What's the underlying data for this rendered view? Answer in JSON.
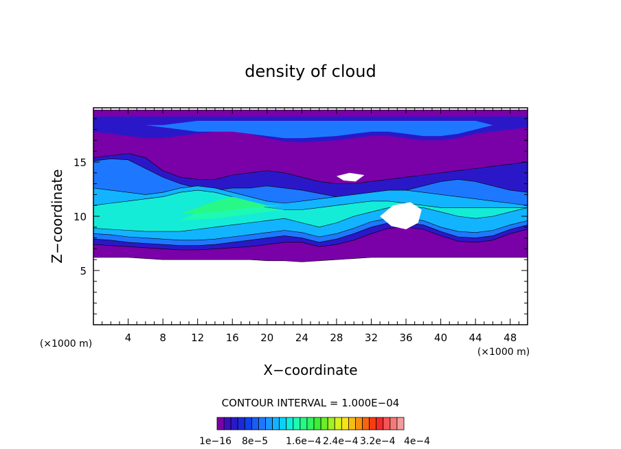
{
  "chart_data": {
    "type": "heatmap",
    "title": "density of cloud",
    "xlabel": "X−coordinate",
    "ylabel": "Z−coordinate",
    "x_unit_left": "(×1000 m)",
    "x_unit_right": "(×1000 m)",
    "xlim": [
      0,
      50
    ],
    "ylim": [
      0,
      20
    ],
    "x_ticks": [
      4,
      8,
      12,
      16,
      20,
      24,
      28,
      32,
      36,
      40,
      44,
      48
    ],
    "y_ticks": [
      5,
      10,
      15
    ],
    "contour_interval_text": "CONTOUR INTERVAL = 1.000E−04",
    "colorbar": {
      "colors": [
        "#7a00a8",
        "#3c10b8",
        "#2a18c8",
        "#1a2ad8",
        "#1040e8",
        "#1a5cf4",
        "#1e78ff",
        "#1c96ff",
        "#12b4ff",
        "#0ad2f6",
        "#14ecd8",
        "#1efab0",
        "#28f886",
        "#30f460",
        "#3cee36",
        "#6cee28",
        "#a4f024",
        "#d6f21e",
        "#f6e418",
        "#f6bc14",
        "#f69010",
        "#f6640e",
        "#f63c10",
        "#f42a2a",
        "#f45454",
        "#f47a7a",
        "#f49c9c"
      ],
      "labels": [
        "1e−16",
        "8e−5",
        "1.6e−4",
        "2.4e−4",
        "3.2e−4",
        "4e−4"
      ]
    },
    "bands": [
      {
        "level": 1,
        "color": "#7a00a8",
        "z_bottom": [
          6.2,
          6.2,
          6.2,
          6.1,
          6.0,
          6.0,
          6.0,
          6.0,
          6.0,
          6.0,
          5.9,
          5.9,
          5.8,
          5.9,
          6.0,
          6.1,
          6.2,
          6.2,
          6.2,
          6.2,
          6.2,
          6.2,
          6.2,
          6.2,
          6.2,
          6.2
        ],
        "z_top": [
          19.8,
          19.8,
          19.8,
          19.8,
          19.8,
          19.8,
          19.8,
          19.8,
          19.8,
          19.8,
          19.8,
          19.8,
          19.8,
          19.8,
          19.8,
          19.8,
          19.8,
          19.8,
          19.8,
          19.8,
          19.8,
          19.8,
          19.8,
          19.8,
          19.8,
          19.8
        ]
      },
      {
        "level": 2,
        "color": "#2a18c8",
        "z_bottom": [
          7.4,
          7.3,
          7.2,
          7.1,
          7.0,
          6.9,
          6.9,
          7.0,
          7.1,
          7.2,
          7.4,
          7.6,
          7.6,
          7.2,
          7.4,
          7.8,
          8.4,
          8.9,
          9.0,
          8.8,
          8.2,
          7.7,
          7.6,
          7.8,
          8.4,
          8.8
        ],
        "z_top": [
          15.4,
          15.6,
          15.8,
          15.4,
          14.2,
          13.6,
          13.4,
          13.4,
          13.8,
          14.0,
          14.2,
          14.0,
          13.6,
          13.2,
          13.0,
          13.0,
          13.2,
          13.4,
          13.6,
          13.8,
          14.0,
          14.2,
          14.4,
          14.6,
          14.8,
          15.0
        ]
      },
      {
        "level": 3,
        "color": "#1e78ff",
        "z_bottom": [
          7.9,
          7.8,
          7.6,
          7.5,
          7.4,
          7.3,
          7.3,
          7.4,
          7.6,
          7.8,
          8.0,
          8.2,
          8.0,
          7.6,
          7.9,
          8.4,
          9.0,
          9.4,
          9.4,
          9.2,
          8.6,
          8.1,
          8.0,
          8.2,
          8.8,
          9.2
        ],
        "z_top": [
          15.1,
          15.3,
          15.2,
          14.4,
          13.6,
          13.0,
          12.6,
          12.4,
          12.6,
          12.6,
          12.8,
          12.6,
          12.4,
          12.1,
          11.8,
          11.6,
          11.8,
          12.0,
          12.4,
          12.8,
          13.2,
          13.4,
          13.2,
          12.8,
          12.4,
          12.2
        ]
      },
      {
        "level": 4,
        "color": "#12b4ff",
        "z_bottom": [
          8.4,
          8.3,
          8.1,
          8.0,
          7.9,
          7.8,
          7.8,
          7.9,
          8.1,
          8.3,
          8.5,
          8.7,
          8.5,
          8.1,
          8.4,
          8.9,
          9.5,
          9.8,
          9.8,
          9.6,
          9.0,
          8.6,
          8.5,
          8.7,
          9.2,
          9.6
        ],
        "z_top": [
          12.6,
          12.4,
          12.2,
          12.0,
          12.2,
          12.6,
          12.8,
          12.6,
          12.2,
          11.8,
          11.4,
          11.2,
          11.4,
          11.6,
          11.8,
          12.0,
          12.2,
          12.4,
          12.4,
          12.2,
          12.0,
          11.8,
          11.6,
          11.4,
          11.2,
          11.0
        ]
      },
      {
        "level": 5,
        "color": "#14ecd8",
        "z_bottom": [
          8.9,
          8.8,
          8.7,
          8.6,
          8.6,
          8.6,
          8.8,
          9.0,
          9.2,
          9.4,
          9.6,
          9.8,
          9.4,
          9.0,
          9.4,
          10.0,
          10.4,
          10.8,
          10.9,
          10.8,
          10.4,
          10.0,
          9.8,
          10.0,
          10.4,
          10.8
        ],
        "z_top": [
          11.0,
          11.2,
          11.4,
          11.6,
          11.8,
          12.2,
          12.4,
          12.2,
          11.8,
          11.2,
          10.8,
          10.6,
          10.6,
          10.8,
          11.0,
          11.2,
          11.4,
          11.4,
          11.2,
          11.0,
          10.8,
          10.8,
          10.8,
          10.8,
          10.8,
          10.8
        ]
      },
      {
        "level": 6,
        "color": "#1efab0",
        "z_bottom": [
          9.6,
          9.6,
          9.6,
          9.6,
          9.6,
          9.6,
          9.7,
          9.8,
          10.0,
          10.2,
          10.4,
          10.6,
          10.6,
          10.6,
          10.6,
          10.6,
          10.6,
          10.6,
          10.6,
          10.6,
          10.6,
          10.6,
          10.6,
          10.6,
          10.6,
          10.6
        ],
        "z_top": [
          9.6,
          9.6,
          9.6,
          9.6,
          9.6,
          9.6,
          10.4,
          11.2,
          11.6,
          11.2,
          10.8,
          10.6,
          10.6,
          10.6,
          10.6,
          10.6,
          10.6,
          10.6,
          10.6,
          10.6,
          10.6,
          10.6,
          10.6,
          10.6,
          10.6,
          10.6
        ]
      },
      {
        "level": 7,
        "color": "#28f886",
        "z_bottom": [
          10.2,
          10.2,
          10.2,
          10.2,
          10.2,
          10.2,
          10.3,
          10.4,
          10.6,
          10.8,
          10.9,
          11.0,
          11.0,
          11.0,
          11.0,
          11.0,
          11.0,
          11.0,
          11.0,
          11.0,
          11.0,
          11.0,
          11.0,
          11.0,
          11.0,
          11.0
        ],
        "z_top": [
          10.2,
          10.2,
          10.2,
          10.2,
          10.2,
          10.2,
          10.8,
          11.4,
          11.8,
          11.4,
          11.0,
          11.0,
          11.0,
          11.0,
          11.0,
          11.0,
          11.0,
          11.0,
          11.0,
          11.0,
          11.0,
          11.0,
          11.0,
          11.0,
          11.0,
          11.0
        ]
      },
      {
        "level": 2,
        "color": "#2a18c8",
        "z_bottom": [
          17.8,
          17.6,
          17.4,
          17.2,
          17.2,
          17.4,
          17.6,
          17.8,
          17.8,
          17.6,
          17.2,
          16.9,
          16.8,
          16.9,
          17.0,
          17.2,
          17.4,
          17.4,
          17.2,
          17.0,
          17.0,
          17.2,
          17.6,
          17.8,
          18.0,
          18.2
        ],
        "z_top": [
          19.2,
          19.2,
          19.2,
          19.2,
          19.2,
          19.2,
          19.2,
          19.2,
          19.2,
          19.2,
          19.2,
          19.2,
          19.2,
          19.2,
          19.2,
          19.2,
          19.2,
          19.2,
          19.2,
          19.2,
          19.2,
          19.2,
          19.2,
          19.2,
          19.2,
          19.2
        ]
      },
      {
        "level": 3,
        "color": "#1e78ff",
        "z_bottom": [
          18.4,
          18.4,
          18.4,
          18.4,
          18.2,
          18.0,
          17.8,
          17.8,
          17.8,
          17.6,
          17.4,
          17.2,
          17.2,
          17.3,
          17.4,
          17.6,
          17.8,
          17.8,
          17.6,
          17.4,
          17.4,
          17.6,
          18.0,
          18.4,
          18.4,
          18.4
        ],
        "z_top": [
          18.4,
          18.4,
          18.4,
          18.4,
          18.4,
          18.6,
          18.8,
          18.8,
          18.8,
          18.8,
          18.8,
          18.8,
          18.8,
          18.8,
          18.8,
          18.8,
          18.8,
          18.8,
          18.8,
          18.8,
          18.8,
          18.8,
          18.8,
          18.4,
          18.4,
          18.4
        ]
      }
    ],
    "holes": [
      [
        [
          28.0,
          13.7
        ],
        [
          29.5,
          14.0
        ],
        [
          31.2,
          13.8
        ],
        [
          30.2,
          13.2
        ],
        [
          28.8,
          13.3
        ]
      ],
      [
        [
          33.0,
          10.0
        ],
        [
          34.5,
          11.0
        ],
        [
          36.5,
          11.3
        ],
        [
          37.8,
          10.6
        ],
        [
          37.4,
          9.4
        ],
        [
          36.0,
          8.8
        ],
        [
          34.3,
          9.1
        ]
      ]
    ]
  }
}
